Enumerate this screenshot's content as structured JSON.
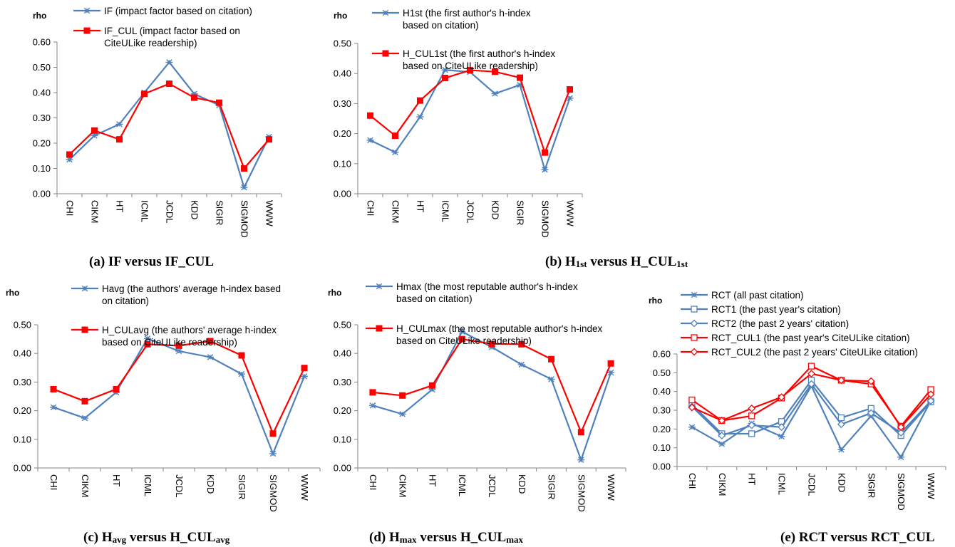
{
  "figure": {
    "categories": [
      "CHI",
      "CIKM",
      "HT",
      "ICML",
      "JCDL",
      "KDD",
      "SIGIR",
      "SIGMOD",
      "WWW"
    ],
    "colors": {
      "citation": "#4f81bd",
      "cul": "#ff0000",
      "axis": "#868686"
    }
  },
  "chart_data": [
    {
      "type": "line",
      "ylabel": "rho",
      "ylim": [
        0,
        0.6
      ],
      "yticks": [
        "0.00",
        "0.10",
        "0.20",
        "0.30",
        "0.40",
        "0.50",
        "0.60"
      ],
      "categories": [
        "CHI",
        "CIKM",
        "HT",
        "ICML",
        "JCDL",
        "KDD",
        "SIGIR",
        "SIGMOD",
        "WWW"
      ],
      "legend_lines": [
        [
          "IF (impact factor based on citation)"
        ],
        [
          "IF_CUL (impact factor based on",
          "CiteULike readership)"
        ]
      ],
      "series": [
        {
          "name": "IF (impact factor based on citation)",
          "color": "#4f81bd",
          "marker": "star",
          "values": [
            0.135,
            0.23,
            0.275,
            0.4,
            0.52,
            0.395,
            0.35,
            0.025,
            0.225
          ]
        },
        {
          "name": "IF_CUL (impact factor based on CiteULike readership)",
          "color": "#ff0000",
          "marker": "square",
          "values": [
            0.155,
            0.25,
            0.215,
            0.395,
            0.435,
            0.38,
            0.36,
            0.1,
            0.215
          ]
        }
      ],
      "caption": {
        "pre": "(a) IF versus IF_CUL",
        "s1": "",
        "mid": "",
        "s2": ""
      }
    },
    {
      "type": "line",
      "ylabel": "rho",
      "ylim": [
        0,
        0.5
      ],
      "yticks": [
        "0.00",
        "0.10",
        "0.20",
        "0.30",
        "0.40",
        "0.50"
      ],
      "categories": [
        "CHI",
        "CIKM",
        "HT",
        "ICML",
        "JCDL",
        "KDD",
        "SIGIR",
        "SIGMOD",
        "WWW"
      ],
      "legend_lines": [
        [
          "H1st (the first author's h-index",
          "based on citation)"
        ],
        [
          "H_CUL1st (the first author's h-index",
          "based on CiteULike readership)"
        ]
      ],
      "series": [
        {
          "name": "H1st (the first author's h-index based on citation)",
          "color": "#4f81bd",
          "marker": "star",
          "values": [
            0.178,
            0.138,
            0.256,
            0.412,
            0.405,
            0.333,
            0.362,
            0.08,
            0.318
          ]
        },
        {
          "name": "H_CUL1st (the first author's h-index based on CiteULike readership)",
          "color": "#ff0000",
          "marker": "square",
          "values": [
            0.26,
            0.193,
            0.31,
            0.385,
            0.411,
            0.406,
            0.386,
            0.137,
            0.347
          ]
        }
      ],
      "caption": {
        "pre": "(b) H",
        "s1": "1st",
        "mid": " versus H_CUL",
        "s2": "1st"
      }
    },
    {
      "type": "line",
      "ylabel": "rho",
      "ylim": [
        0,
        0.5
      ],
      "yticks": [
        "0.00",
        "0.10",
        "0.20",
        "0.30",
        "0.40",
        "0.50"
      ],
      "categories": [
        "CHI",
        "CIKM",
        "HT",
        "ICML",
        "JCDL",
        "KDD",
        "SIGIR",
        "SIGMOD",
        "WWW"
      ],
      "legend_lines": [
        [
          "Havg (the authors' average h-index based",
          "on citation)"
        ],
        [
          "H_CULavg (the authors' average h-index",
          "based on CiteULike readership)"
        ]
      ],
      "series": [
        {
          "name": "Havg (the authors' average h-index based on citation)",
          "color": "#4f81bd",
          "marker": "star",
          "values": [
            0.212,
            0.174,
            0.264,
            0.452,
            0.408,
            0.387,
            0.328,
            0.05,
            0.32
          ]
        },
        {
          "name": "H_CULavg (the authors' average h-index based on CiteULike readership)",
          "color": "#ff0000",
          "marker": "square",
          "values": [
            0.275,
            0.233,
            0.275,
            0.432,
            0.427,
            0.443,
            0.393,
            0.12,
            0.349
          ]
        }
      ],
      "caption": {
        "pre": "(c) H",
        "s1": "avg",
        "mid": " versus H_CUL",
        "s2": "avg"
      }
    },
    {
      "type": "line",
      "ylabel": "rho",
      "ylim": [
        0,
        0.5
      ],
      "yticks": [
        "0.00",
        "0.10",
        "0.20",
        "0.30",
        "0.40",
        "0.50"
      ],
      "categories": [
        "CHI",
        "CIKM",
        "HT",
        "ICML",
        "JCDL",
        "KDD",
        "SIGIR",
        "SIGMOD",
        "WWW"
      ],
      "legend_lines": [
        [
          "Hmax (the most reputable author's h-index",
          "based on citation)"
        ],
        [
          "H_CULmax (the most reputable author's h-index",
          "based on CiteULike readership)"
        ]
      ],
      "series": [
        {
          "name": "Hmax (the most reputable author's h-index based on citation)",
          "color": "#4f81bd",
          "marker": "star",
          "values": [
            0.218,
            0.188,
            0.274,
            0.476,
            0.422,
            0.361,
            0.31,
            0.028,
            0.333
          ]
        },
        {
          "name": "H_CULmax (the most reputable author's h-index based on CiteULike readership)",
          "color": "#ff0000",
          "marker": "square",
          "values": [
            0.264,
            0.253,
            0.288,
            0.45,
            0.433,
            0.432,
            0.38,
            0.125,
            0.365
          ]
        }
      ],
      "caption": {
        "pre": "(d) H",
        "s1": "max",
        "mid": " versus H_CUL",
        "s2": "max"
      }
    },
    {
      "type": "line",
      "ylabel": "rho",
      "ylim": [
        0,
        0.6
      ],
      "yticks": [
        "0.00",
        "0.10",
        "0.20",
        "0.30",
        "0.40",
        "0.50",
        "0.60"
      ],
      "categories": [
        "CHI",
        "CIKM",
        "HT",
        "ICML",
        "JCDL",
        "KDD",
        "SIGIR",
        "SIGMOD",
        "WWW"
      ],
      "legend_lines": [
        [
          "RCT (all past citation)"
        ],
        [
          "RCT1 (the past year's citation)"
        ],
        [
          "RCT2 (the past 2 years' citation)"
        ],
        [
          "RCT_CUL1 (the past year's CiteULike citation)"
        ],
        [
          "RCT_CUL2 (the past 2 years' CiteULike citation)"
        ]
      ],
      "series": [
        {
          "name": "RCT (all past citation)",
          "color": "#4f81bd",
          "marker": "star",
          "values": [
            0.21,
            0.12,
            0.23,
            0.16,
            0.43,
            0.09,
            0.27,
            0.05,
            0.35
          ]
        },
        {
          "name": "RCT1 (the past year's citation)",
          "color": "#4f81bd",
          "marker": "square-open",
          "values": [
            0.33,
            0.175,
            0.175,
            0.24,
            0.46,
            0.26,
            0.31,
            0.165,
            0.345
          ]
        },
        {
          "name": "RCT2 (the past 2 years' citation)",
          "color": "#4f81bd",
          "marker": "diamond-open",
          "values": [
            0.32,
            0.165,
            0.22,
            0.21,
            0.44,
            0.225,
            0.285,
            0.18,
            0.35
          ]
        },
        {
          "name": "RCT_CUL1 (the past year's CiteULike citation)",
          "color": "#ff0000",
          "marker": "square-open",
          "values": [
            0.355,
            0.245,
            0.27,
            0.365,
            0.535,
            0.46,
            0.44,
            0.215,
            0.41
          ]
        },
        {
          "name": "RCT_CUL2 (the past 2 years' CiteULike citation)",
          "color": "#ff0000",
          "marker": "diamond-open",
          "values": [
            0.315,
            0.245,
            0.31,
            0.37,
            0.495,
            0.46,
            0.455,
            0.21,
            0.385
          ]
        }
      ],
      "caption": {
        "pre": "(e) RCT versus RCT_CUL",
        "s1": "",
        "mid": "",
        "s2": ""
      }
    }
  ]
}
